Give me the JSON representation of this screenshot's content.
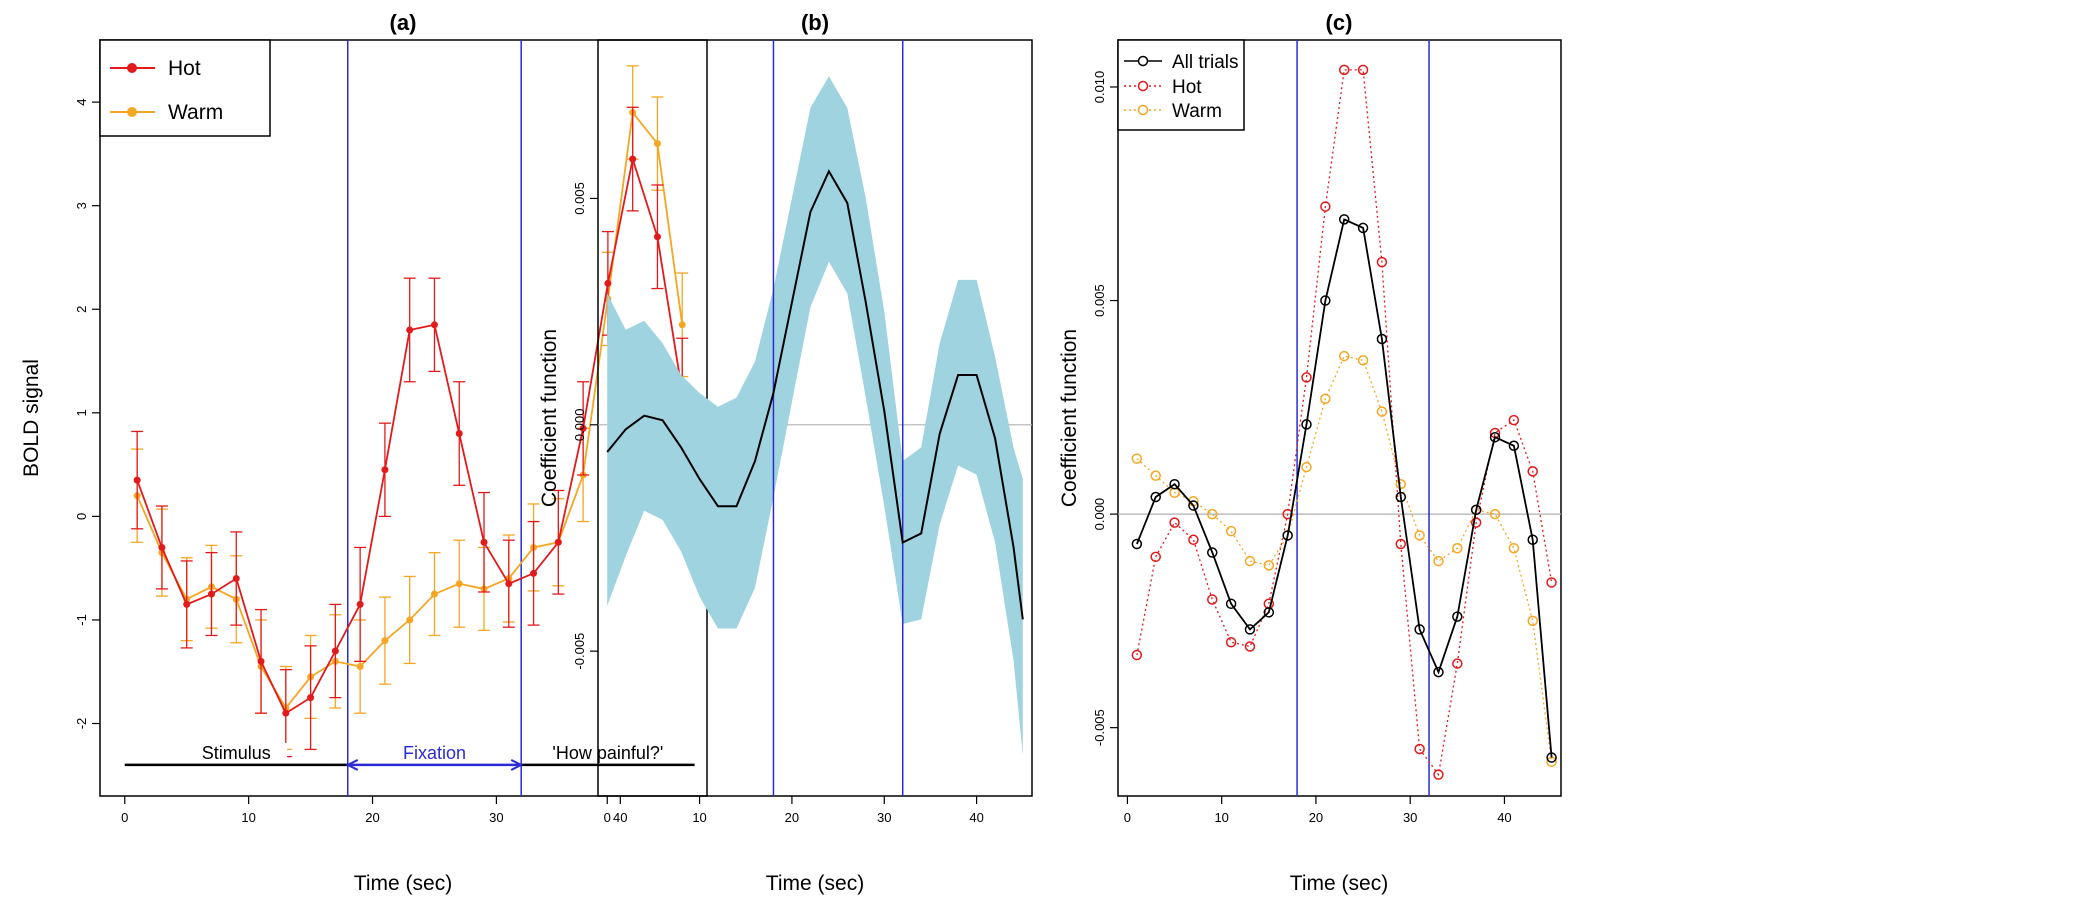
{
  "colors": {
    "hot": "#e31a1c",
    "warm": "#f5a623",
    "vline": "#2b2bd6",
    "band": "#9fd3e0",
    "curve": "#000000",
    "zero_line": "#b0b0b0",
    "all_trials": "#000000"
  },
  "chart_data": [
    {
      "type": "line",
      "panel_label": "(a)",
      "xlabel": "Time (sec)",
      "ylabel": "BOLD signal",
      "xlim": [
        -2,
        47
      ],
      "ylim": [
        -2.7,
        4.6
      ],
      "xticks": [
        0,
        10,
        20,
        30,
        40
      ],
      "yticks": [
        -2,
        -1,
        0,
        1,
        2,
        3,
        4
      ],
      "vlines": [
        18,
        32
      ],
      "legend": "top-left",
      "x": [
        1,
        3,
        5,
        7,
        9,
        11,
        13,
        15,
        17,
        19,
        21,
        23,
        25,
        27,
        29,
        31,
        33,
        35,
        37,
        39,
        41,
        43,
        45
      ],
      "series": [
        {
          "name": "Hot",
          "color": "#e31a1c",
          "values": [
            0.35,
            -0.3,
            -0.85,
            -0.75,
            -0.6,
            -1.4,
            -1.9,
            -1.75,
            -1.3,
            -0.85,
            0.45,
            1.8,
            1.85,
            0.8,
            -0.25,
            -0.65,
            -0.55,
            -0.25,
            0.85,
            2.25,
            3.45,
            2.7,
            1.2
          ],
          "err": [
            0.47,
            0.4,
            0.42,
            0.4,
            0.45,
            0.5,
            0.42,
            0.5,
            0.45,
            0.55,
            0.45,
            0.5,
            0.45,
            0.5,
            0.48,
            0.42,
            0.5,
            0.5,
            0.45,
            0.5,
            0.5,
            0.5,
            0.52
          ]
        },
        {
          "name": "Warm",
          "color": "#f5a623",
          "values": [
            0.2,
            -0.35,
            -0.8,
            -0.68,
            -0.8,
            -1.45,
            -1.85,
            -1.55,
            -1.4,
            -1.45,
            -1.2,
            -1.0,
            -0.75,
            -0.65,
            -0.7,
            -0.6,
            -0.3,
            -0.25,
            0.4,
            2.1,
            3.9,
            3.6,
            1.85
          ],
          "err": [
            0.45,
            0.42,
            0.4,
            0.4,
            0.42,
            0.45,
            0.4,
            0.4,
            0.45,
            0.45,
            0.42,
            0.42,
            0.4,
            0.42,
            0.4,
            0.42,
            0.42,
            0.42,
            0.45,
            0.45,
            0.45,
            0.45,
            0.5
          ]
        }
      ],
      "phases": [
        {
          "label": "Stimulus",
          "from": 0,
          "to": 18,
          "color": "#000000"
        },
        {
          "label": "Fixation",
          "from": 18,
          "to": 32,
          "color": "#2b2bd6"
        },
        {
          "label": "'How painful?'",
          "from": 32,
          "to": 46,
          "color": "#000000"
        }
      ],
      "phase_y": -2.4
    },
    {
      "type": "area",
      "panel_label": "(b)",
      "xlabel": "Time (sec)",
      "ylabel": "Coefficient function",
      "xlim": [
        -1,
        46
      ],
      "ylim": [
        -0.0082,
        0.0085
      ],
      "xticks": [
        0,
        10,
        20,
        30,
        40
      ],
      "yticks": [
        -0.005,
        0,
        0.005
      ],
      "ytick_labels": [
        "-0.005",
        "0.000",
        "0.005"
      ],
      "vlines": [
        18,
        32
      ],
      "zero_line": true,
      "x": [
        0,
        2,
        4,
        6,
        8,
        10,
        12,
        14,
        16,
        18,
        20,
        22,
        24,
        26,
        28,
        30,
        32,
        34,
        36,
        38,
        40,
        42,
        44,
        45
      ],
      "estimate": [
        -0.0006,
        -0.0001,
        0.0002,
        0.0001,
        -0.0005,
        -0.0012,
        -0.0018,
        -0.0018,
        -0.0008,
        0.0007,
        0.0027,
        0.0047,
        0.0056,
        0.0049,
        0.0027,
        0.0003,
        -0.0026,
        -0.0024,
        -0.0002,
        0.0011,
        0.0011,
        -0.0003,
        -0.0027,
        -0.0043
      ],
      "upper": [
        0.0029,
        0.0021,
        0.0023,
        0.0018,
        0.0011,
        0.0007,
        0.0004,
        0.0006,
        0.0014,
        0.003,
        0.005,
        0.007,
        0.0077,
        0.007,
        0.005,
        0.0025,
        -0.0008,
        -0.0005,
        0.0018,
        0.0032,
        0.0032,
        0.0015,
        -0.0005,
        -0.0012
      ],
      "lower": [
        -0.004,
        -0.0029,
        -0.0019,
        -0.0021,
        -0.0028,
        -0.0038,
        -0.0045,
        -0.0045,
        -0.0036,
        -0.0016,
        0.0005,
        0.0026,
        0.0036,
        0.0029,
        0.0006,
        -0.0018,
        -0.0044,
        -0.0043,
        -0.0022,
        -0.0009,
        -0.0011,
        -0.0026,
        -0.0052,
        -0.0073
      ]
    },
    {
      "type": "line",
      "panel_label": "(c)",
      "xlabel": "Time (sec)",
      "ylabel": "Coefficient function",
      "xlim": [
        -1,
        46
      ],
      "ylim": [
        -0.0066,
        0.0111
      ],
      "xticks": [
        0,
        10,
        20,
        30,
        40
      ],
      "yticks": [
        -0.005,
        0,
        0.005,
        0.01
      ],
      "ytick_labels": [
        "-0.005",
        "0.000",
        "0.005",
        "0.010"
      ],
      "vlines": [
        18,
        32
      ],
      "zero_line": true,
      "legend": "top-left",
      "x": [
        1,
        3,
        5,
        7,
        9,
        11,
        13,
        15,
        17,
        19,
        21,
        23,
        25,
        27,
        29,
        31,
        33,
        35,
        37,
        39,
        41,
        43,
        45
      ],
      "series": [
        {
          "name": "All trials",
          "color": "#000000",
          "style": "solid",
          "values": [
            -0.0007,
            0.0004,
            0.0007,
            0.0002,
            -0.0009,
            -0.0021,
            -0.0027,
            -0.0023,
            -0.0005,
            0.0021,
            0.005,
            0.0069,
            0.0067,
            0.0041,
            0.0004,
            -0.0027,
            -0.0037,
            -0.0024,
            0.0001,
            0.0018,
            0.0016,
            -0.0006,
            -0.0057
          ]
        },
        {
          "name": "Hot",
          "color": "#e31a1c",
          "style": "dotted",
          "values": [
            -0.0033,
            -0.001,
            -0.0002,
            -0.0006,
            -0.002,
            -0.003,
            -0.0031,
            -0.0021,
            0.0,
            0.0032,
            0.0072,
            0.0104,
            0.0104,
            0.0059,
            -0.0007,
            -0.0055,
            -0.0061,
            -0.0035,
            -0.0002,
            0.0019,
            0.0022,
            0.001,
            -0.0016
          ]
        },
        {
          "name": "Warm",
          "color": "#f5a623",
          "style": "dotted",
          "values": [
            0.0013,
            0.0009,
            0.0005,
            0.0003,
            0.0,
            -0.0004,
            -0.0011,
            -0.0012,
            -0.0005,
            0.0011,
            0.0027,
            0.0037,
            0.0036,
            0.0024,
            0.0007,
            -0.0005,
            -0.0011,
            -0.0008,
            0.0001,
            0.0,
            -0.0008,
            -0.0025,
            -0.0058
          ]
        }
      ]
    }
  ]
}
